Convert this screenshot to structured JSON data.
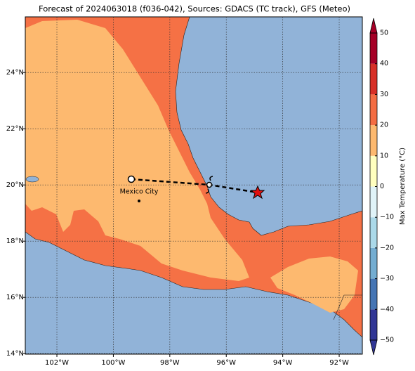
{
  "title": "Forecast of 2024063018 (f036-042), Sources: GDACS (TC track), GFS (Meteo)",
  "map": {
    "xlim": [
      -103.12,
      -91.18
    ],
    "ylim": [
      13.98,
      25.98
    ],
    "lon_ticks": [
      {
        "value": -102,
        "label": "102°W"
      },
      {
        "value": -100,
        "label": "100°W"
      },
      {
        "value": -98,
        "label": "98°W"
      },
      {
        "value": -96,
        "label": "96°W"
      },
      {
        "value": -94,
        "label": "94°W"
      },
      {
        "value": -92,
        "label": "92°W"
      }
    ],
    "lat_ticks": [
      {
        "value": 14,
        "label": "14°N"
      },
      {
        "value": 16,
        "label": "16°N"
      },
      {
        "value": 18,
        "label": "18°N"
      },
      {
        "value": 20,
        "label": "20°N"
      },
      {
        "value": 22,
        "label": "22°N"
      },
      {
        "value": 24,
        "label": "24°N"
      }
    ],
    "city": "Mexico City"
  },
  "colorbar": {
    "label": "Max Temperature (°C)",
    "lim": [
      -50,
      50
    ],
    "ticks": [
      {
        "value": -50,
        "label": "−50"
      },
      {
        "value": -40,
        "label": "−40"
      },
      {
        "value": -30,
        "label": "−30"
      },
      {
        "value": -20,
        "label": "−20"
      },
      {
        "value": -10,
        "label": "−10"
      },
      0,
      10,
      20,
      30,
      40,
      50
    ],
    "colors": [
      "#313695",
      "#4575b4",
      "#74add1",
      "#abd9e9",
      "#e0f3f8",
      "#ffffbf",
      "#fdb96f",
      "#f46d43",
      "#d73027",
      "#a50026"
    ]
  }
}
